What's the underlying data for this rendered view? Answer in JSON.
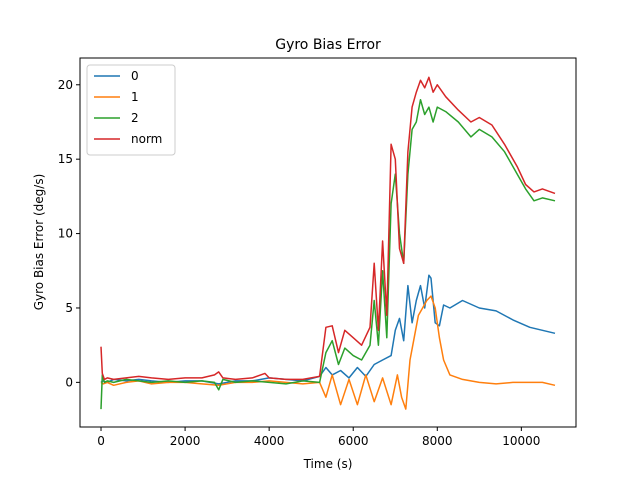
{
  "chart_data": {
    "type": "line",
    "title": "Gyro Bias Error",
    "xlabel": "Time (s)",
    "ylabel": "Gyro Bias Error (deg/s)",
    "xlim": [
      -500,
      11300
    ],
    "ylim": [
      -3.0,
      21.8
    ],
    "xticks": [
      0,
      2000,
      4000,
      6000,
      8000,
      10000
    ],
    "yticks": [
      0,
      5,
      10,
      15,
      20
    ],
    "grid": false,
    "legend_position": "top-left",
    "series": [
      {
        "name": "0",
        "color": "#1f77b4",
        "x": [
          0,
          50,
          150,
          300,
          600,
          900,
          1200,
          1600,
          2000,
          2400,
          2800,
          3200,
          3600,
          4000,
          4400,
          4800,
          5200,
          5350,
          5500,
          5700,
          5900,
          6100,
          6300,
          6500,
          6700,
          6900,
          7000,
          7100,
          7200,
          7300,
          7400,
          7500,
          7600,
          7700,
          7800,
          7850,
          7950,
          8050,
          8150,
          8300,
          8600,
          9000,
          9400,
          9800,
          10200,
          10500,
          10800
        ],
        "y": [
          0.0,
          0.1,
          0.0,
          0.2,
          0.1,
          0.2,
          0.1,
          0.0,
          0.1,
          0.1,
          -0.1,
          0.1,
          0.1,
          0.3,
          0.2,
          0.1,
          0.4,
          1.0,
          0.5,
          0.8,
          0.3,
          1.0,
          0.4,
          1.2,
          1.5,
          1.8,
          3.5,
          4.3,
          2.8,
          6.5,
          4.0,
          5.5,
          6.5,
          5.0,
          7.2,
          7.0,
          4.0,
          3.8,
          5.2,
          5.0,
          5.5,
          5.0,
          4.8,
          4.2,
          3.7,
          3.5,
          3.3
        ]
      },
      {
        "name": "1",
        "color": "#ff7f0e",
        "x": [
          0,
          50,
          150,
          300,
          600,
          900,
          1200,
          1600,
          2000,
          2400,
          2800,
          3200,
          3600,
          4000,
          4400,
          4800,
          5200,
          5350,
          5500,
          5700,
          5900,
          6100,
          6300,
          6500,
          6700,
          6900,
          7050,
          7150,
          7250,
          7350,
          7450,
          7550,
          7650,
          7750,
          7850,
          7950,
          8050,
          8150,
          8300,
          8600,
          9000,
          9400,
          9800,
          10200,
          10500,
          10800
        ],
        "y": [
          0.0,
          -0.1,
          0.0,
          -0.2,
          0.0,
          0.1,
          -0.1,
          0.0,
          0.0,
          -0.1,
          -0.2,
          0.0,
          0.0,
          0.1,
          0.0,
          -0.1,
          0.0,
          -1.0,
          0.5,
          -1.5,
          0.2,
          -1.5,
          0.5,
          -1.3,
          0.3,
          -1.5,
          0.5,
          -1.0,
          -1.8,
          1.5,
          3.0,
          4.5,
          5.0,
          5.5,
          5.8,
          5.0,
          3.0,
          1.5,
          0.5,
          0.2,
          0.0,
          -0.1,
          0.0,
          0.0,
          0.0,
          -0.2
        ]
      },
      {
        "name": "2",
        "color": "#2ca02c",
        "x": [
          0,
          30,
          80,
          150,
          300,
          600,
          900,
          1200,
          1600,
          2000,
          2400,
          2700,
          2800,
          2900,
          3200,
          3600,
          4000,
          4400,
          4800,
          5200,
          5350,
          5500,
          5650,
          5800,
          6000,
          6200,
          6400,
          6500,
          6600,
          6700,
          6800,
          6900,
          7000,
          7100,
          7200,
          7300,
          7400,
          7500,
          7600,
          7700,
          7800,
          7900,
          8000,
          8200,
          8500,
          8800,
          9000,
          9300,
          9600,
          9900,
          10100,
          10300,
          10500,
          10800
        ],
        "y": [
          -1.8,
          0.5,
          0.0,
          0.1,
          0.0,
          0.2,
          0.1,
          0.0,
          0.1,
          0.0,
          0.1,
          0.0,
          -0.5,
          0.2,
          0.0,
          0.1,
          0.0,
          -0.1,
          0.1,
          0.0,
          2.0,
          2.8,
          1.2,
          2.3,
          1.8,
          1.5,
          2.5,
          5.5,
          2.5,
          7.5,
          3.0,
          12.0,
          14.0,
          10.0,
          8.0,
          14.0,
          17.0,
          17.5,
          19.0,
          18.0,
          18.5,
          17.5,
          18.5,
          18.2,
          17.5,
          16.5,
          17.0,
          16.5,
          15.5,
          14.0,
          13.0,
          12.2,
          12.4,
          12.2
        ]
      },
      {
        "name": "norm",
        "color": "#d62728",
        "x": [
          0,
          30,
          80,
          150,
          300,
          600,
          900,
          1200,
          1600,
          2000,
          2400,
          2700,
          2800,
          2900,
          3200,
          3600,
          3900,
          4000,
          4400,
          4800,
          5200,
          5350,
          5500,
          5650,
          5800,
          6000,
          6200,
          6400,
          6500,
          6600,
          6700,
          6800,
          6900,
          7000,
          7100,
          7200,
          7300,
          7400,
          7500,
          7600,
          7700,
          7800,
          7900,
          8000,
          8200,
          8500,
          8800,
          9000,
          9300,
          9600,
          9900,
          10100,
          10300,
          10500,
          10800
        ],
        "y": [
          2.4,
          0.6,
          0.2,
          0.3,
          0.2,
          0.3,
          0.4,
          0.3,
          0.2,
          0.3,
          0.3,
          0.5,
          0.7,
          0.3,
          0.2,
          0.3,
          0.6,
          0.3,
          0.2,
          0.2,
          0.4,
          3.7,
          3.8,
          2.0,
          3.5,
          3.0,
          2.5,
          3.7,
          8.0,
          3.5,
          9.5,
          4.5,
          16.0,
          15.0,
          9.0,
          8.0,
          15.5,
          18.5,
          19.5,
          20.3,
          19.8,
          20.5,
          19.5,
          20.0,
          19.2,
          18.3,
          17.5,
          17.8,
          17.3,
          16.0,
          14.5,
          13.3,
          12.8,
          13.0,
          12.7
        ]
      }
    ]
  }
}
